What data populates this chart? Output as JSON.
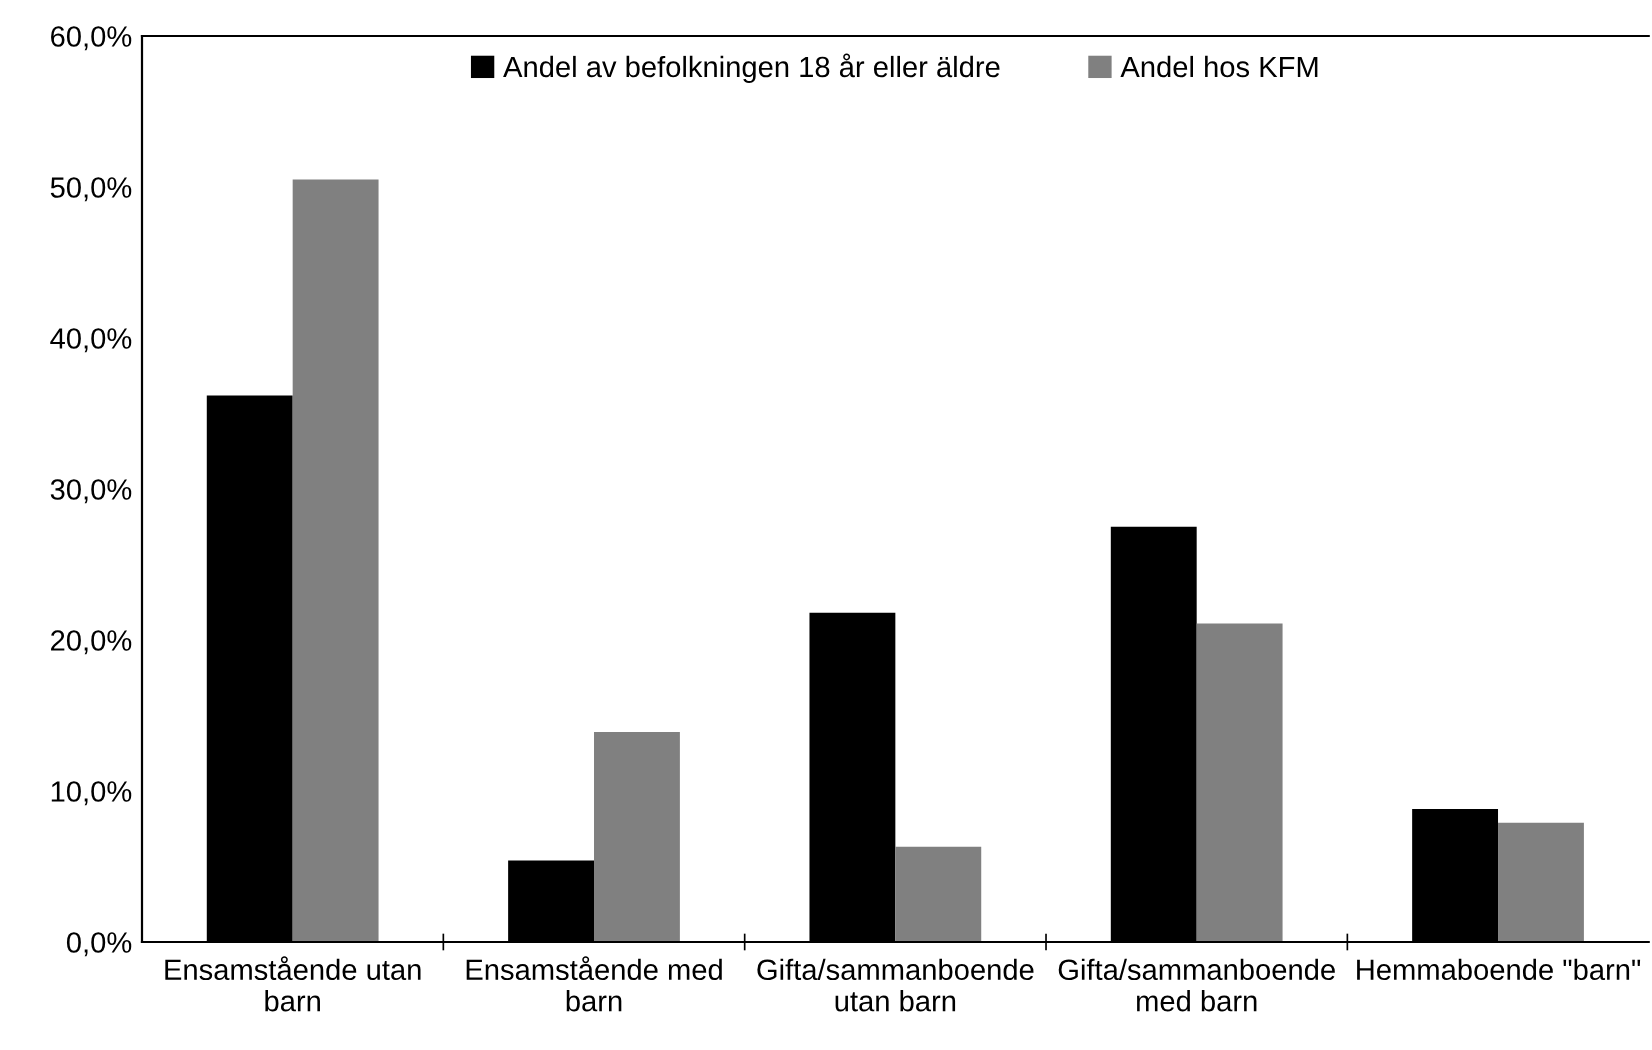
{
  "chart_data": {
    "type": "bar",
    "categories": [
      "Ensamstående utan\nbarn",
      "Ensamstående med\nbarn",
      "Gifta/sammanboende\nutan barn",
      "Gifta/sammanboende\nmed barn",
      "Hemmaboende \"barn\""
    ],
    "series": [
      {
        "name": "Andel av befolkningen 18 år eller äldre",
        "color": "#000000",
        "values": [
          36.2,
          5.4,
          21.8,
          27.5,
          8.8
        ]
      },
      {
        "name": "Andel hos KFM",
        "color": "#808080",
        "values": [
          50.5,
          13.9,
          6.3,
          21.1,
          7.9
        ]
      }
    ],
    "ylim": [
      0,
      60
    ],
    "yticks": [
      {
        "value": 0,
        "label": "0,0%"
      },
      {
        "value": 10,
        "label": "10,0%"
      },
      {
        "value": 20,
        "label": "20,0%"
      },
      {
        "value": 30,
        "label": "30,0%"
      },
      {
        "value": 40,
        "label": "40,0%"
      },
      {
        "value": 50,
        "label": "50,0%"
      },
      {
        "value": 60,
        "label": "60,0%"
      }
    ],
    "grid": false,
    "legend": "top"
  }
}
